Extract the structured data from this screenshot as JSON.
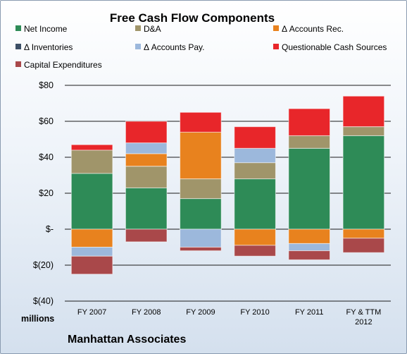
{
  "chart_data": {
    "type": "bar",
    "stacked": true,
    "title": "Free Cash Flow Components",
    "units_label": "millions",
    "company": "Manhattan Associates",
    "ylim": [
      -40,
      80
    ],
    "yticks": [
      80,
      60,
      40,
      20,
      0,
      -20,
      -40
    ],
    "ytick_labels": [
      "$80",
      "$60",
      "$40",
      "$20",
      "$-",
      "$(20)",
      "$(40)"
    ],
    "grid": true,
    "legend_position": "top",
    "categories": [
      [
        "FY 2007"
      ],
      [
        "FY 2008"
      ],
      [
        "FY 2009"
      ],
      [
        "FY 2010"
      ],
      [
        "FY 2011"
      ],
      [
        "FY & TTM",
        "2012"
      ]
    ],
    "series": [
      {
        "name": "Net Income",
        "color": "#2e8b57",
        "values": [
          31,
          23,
          17,
          28,
          45,
          52
        ]
      },
      {
        "name": "D&A",
        "color": "#a0956a",
        "values": [
          13,
          12,
          11,
          9,
          7,
          5
        ]
      },
      {
        "name": "Δ Accounts Rec.",
        "color": "#e8821e",
        "values": [
          -10,
          7,
          26,
          -9,
          -8,
          -5
        ]
      },
      {
        "name": "Δ Inventories",
        "color": "#3c4f66",
        "values": [
          0,
          0,
          0,
          0,
          0,
          0
        ]
      },
      {
        "name": "Δ Accounts Pay.",
        "color": "#9cb8dc",
        "values": [
          -5,
          6,
          -10,
          8,
          -4,
          0
        ]
      },
      {
        "name": "Questionable Cash Sources",
        "color": "#e8262a",
        "values": [
          3,
          12,
          11,
          12,
          15,
          17
        ]
      },
      {
        "name": "Capital Expenditures",
        "color": "#a9484a",
        "values": [
          -10,
          -7,
          -2,
          -6,
          -5,
          -8
        ]
      }
    ]
  }
}
